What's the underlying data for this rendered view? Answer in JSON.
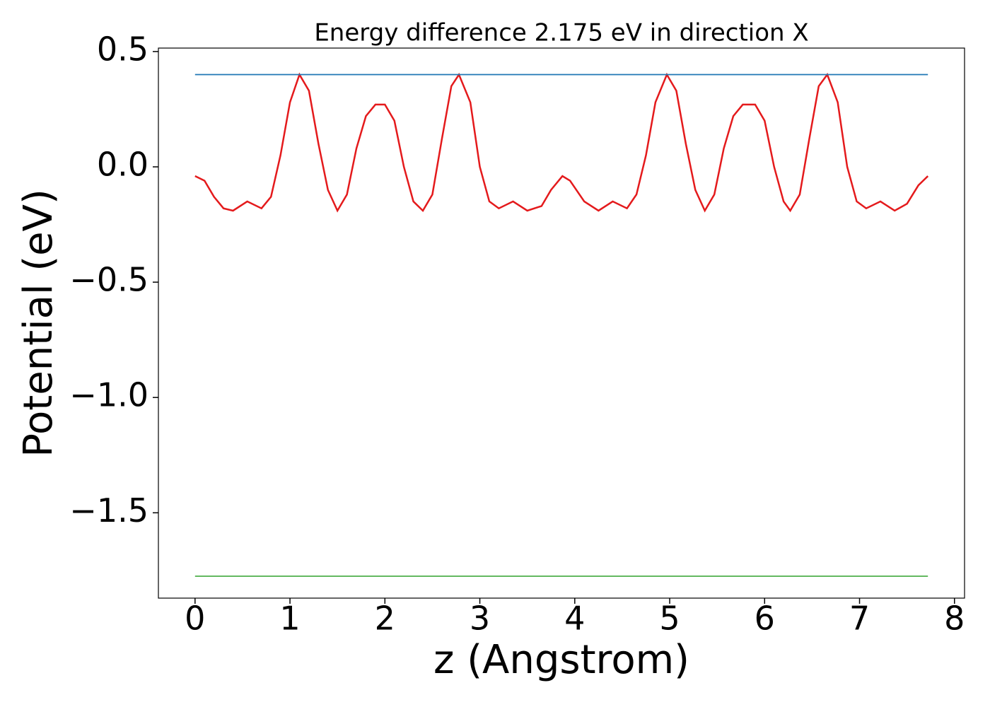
{
  "chart_data": {
    "type": "line",
    "title": "Energy difference 2.175 eV in direction X",
    "xlabel": "z (Angstrom)",
    "ylabel": "Potential (eV)",
    "xlim": [
      -0.386,
      8.106
    ],
    "ylim": [
      -1.87,
      0.515
    ],
    "xticks": [
      0,
      1,
      2,
      3,
      4,
      5,
      6,
      7,
      8
    ],
    "yticks": [
      {
        "value": -1.5,
        "label": "−1.5"
      },
      {
        "value": -1.0,
        "label": "−1.0"
      },
      {
        "value": -0.5,
        "label": "−0.5"
      },
      {
        "value": 0,
        "label": "0.0"
      },
      0.5
    ],
    "grid": false,
    "series": [
      {
        "color": "#e41a1c",
        "x": [
          0,
          0.1,
          0.2,
          0.3,
          0.4,
          0.55,
          0.7,
          0.8,
          0.9,
          1.0,
          1.1,
          1.2,
          1.3,
          1.4,
          1.5,
          1.6,
          1.7,
          1.8,
          1.9,
          2.0,
          2.1,
          2.2,
          2.3,
          2.4,
          2.5,
          2.6,
          2.7,
          2.78,
          2.9,
          3.0,
          3.1,
          3.2,
          3.35,
          3.5,
          3.65,
          3.75,
          3.87,
          3.95,
          4.1,
          4.25,
          4.4,
          4.55,
          4.65,
          4.75,
          4.85,
          4.97,
          5.07,
          5.17,
          5.27,
          5.37,
          5.47,
          5.57,
          5.67,
          5.77,
          5.9,
          6.0,
          6.1,
          6.2,
          6.27,
          6.37,
          6.47,
          6.57,
          6.66,
          6.77,
          6.87,
          6.97,
          7.07,
          7.22,
          7.37,
          7.5,
          7.62,
          7.72
        ],
        "values": [
          -0.04,
          -0.06,
          -0.13,
          -0.18,
          -0.19,
          -0.15,
          -0.18,
          -0.13,
          0.05,
          0.28,
          0.4,
          0.33,
          0.1,
          -0.1,
          -0.19,
          -0.12,
          0.08,
          0.22,
          0.27,
          0.27,
          0.2,
          0.0,
          -0.15,
          -0.19,
          -0.12,
          0.12,
          0.35,
          0.4,
          0.28,
          0.0,
          -0.15,
          -0.18,
          -0.15,
          -0.19,
          -0.17,
          -0.1,
          -0.04,
          -0.06,
          -0.15,
          -0.19,
          -0.15,
          -0.18,
          -0.12,
          0.05,
          0.28,
          0.4,
          0.33,
          0.1,
          -0.1,
          -0.19,
          -0.12,
          0.08,
          0.22,
          0.27,
          0.27,
          0.2,
          0.0,
          -0.15,
          -0.19,
          -0.12,
          0.12,
          0.35,
          0.4,
          0.28,
          0.0,
          -0.15,
          -0.18,
          -0.15,
          -0.19,
          -0.16,
          -0.08,
          -0.04
        ]
      },
      {
        "color": "#1f77b4",
        "x": [
          0,
          7.72
        ],
        "values": [
          0.4,
          0.4
        ]
      },
      {
        "color": "#4daf4a",
        "x": [
          0,
          7.72
        ],
        "values": [
          -1.775,
          -1.775
        ]
      }
    ]
  }
}
